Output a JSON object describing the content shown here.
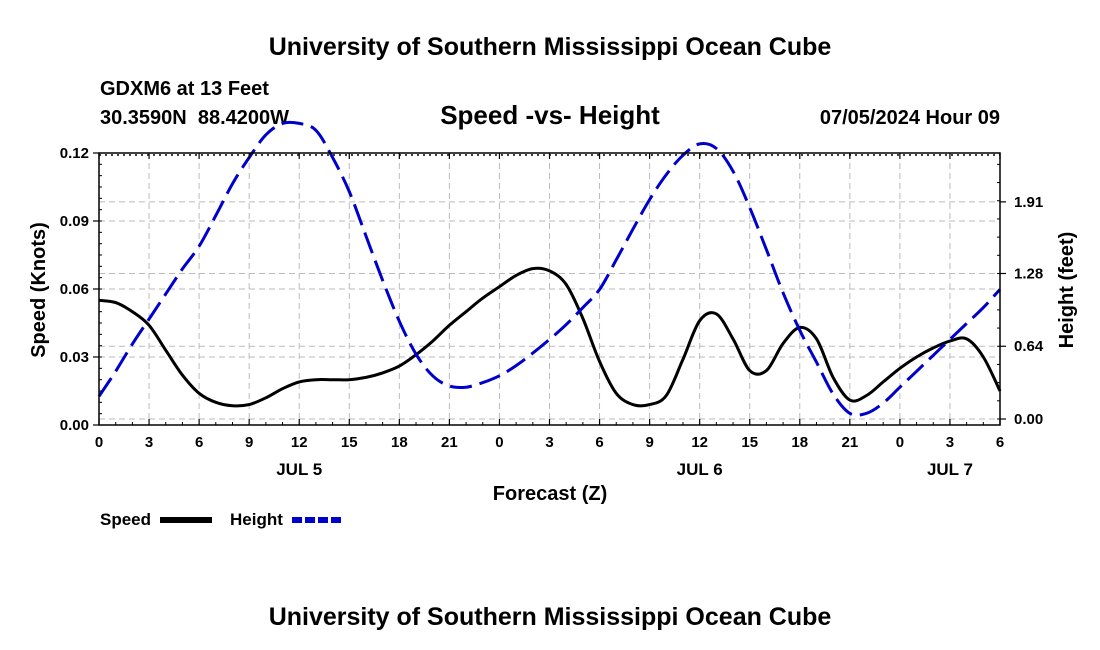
{
  "header": {
    "title": "University of Southern Mississippi Ocean Cube",
    "station": "GDXM6 at 13 Feet",
    "coords": "30.3590N  88.4200W",
    "subtitle": "Speed -vs- Height",
    "datetime": "07/05/2024 Hour 09"
  },
  "footer": {
    "title": "University of Southern Mississippi Ocean Cube"
  },
  "legend": {
    "speed_label": "Speed",
    "height_label": "Height"
  },
  "colors": {
    "speed": "#000000",
    "height": "#0000cc",
    "grid": "#bbbbbb"
  },
  "chart_data": {
    "type": "line",
    "title": "Speed -vs- Height",
    "xlabel": "Forecast (Z)",
    "ylabel_left": "Speed (Knots)",
    "ylabel_right": "Height (feet)",
    "x_hours_range": [
      0,
      54
    ],
    "x_ticks": [
      {
        "h": 0,
        "label": "0"
      },
      {
        "h": 3,
        "label": "3"
      },
      {
        "h": 6,
        "label": "6"
      },
      {
        "h": 9,
        "label": "9"
      },
      {
        "h": 12,
        "label": "12"
      },
      {
        "h": 15,
        "label": "15"
      },
      {
        "h": 18,
        "label": "18"
      },
      {
        "h": 21,
        "label": "21"
      },
      {
        "h": 24,
        "label": "0"
      },
      {
        "h": 27,
        "label": "3"
      },
      {
        "h": 30,
        "label": "6"
      },
      {
        "h": 33,
        "label": "9"
      },
      {
        "h": 36,
        "label": "12"
      },
      {
        "h": 39,
        "label": "15"
      },
      {
        "h": 42,
        "label": "18"
      },
      {
        "h": 45,
        "label": "21"
      },
      {
        "h": 48,
        "label": "0"
      },
      {
        "h": 51,
        "label": "3"
      },
      {
        "h": 54,
        "label": "6"
      }
    ],
    "day_labels": [
      {
        "h": 12,
        "label": "JUL 5"
      },
      {
        "h": 36,
        "label": "JUL 6"
      },
      {
        "h": 51,
        "label": "JUL 7"
      }
    ],
    "ylim_left": [
      0,
      0.12
    ],
    "y_ticks_left": [
      "0.00",
      "0.03",
      "0.06",
      "0.09",
      "0.12"
    ],
    "ylim_right": [
      0,
      2.34
    ],
    "y_ticks_right": [
      "0.00",
      "0.64",
      "1.28",
      "1.91"
    ],
    "series": [
      {
        "name": "Speed",
        "axis": "left",
        "style": "solid",
        "x": [
          0,
          1,
          2,
          3,
          4,
          5,
          6,
          7,
          8,
          9,
          10,
          11,
          12,
          13,
          14,
          15,
          16,
          17,
          18,
          19,
          20,
          21,
          22,
          23,
          24,
          25,
          26,
          27,
          28,
          29,
          30,
          31,
          32,
          33,
          34,
          35,
          36,
          37,
          38,
          39,
          40,
          41,
          42,
          43,
          44,
          45,
          46,
          47,
          48,
          49,
          50,
          51,
          52,
          53,
          54
        ],
        "values": [
          0.055,
          0.054,
          0.05,
          0.044,
          0.033,
          0.022,
          0.014,
          0.01,
          0.0085,
          0.009,
          0.012,
          0.016,
          0.019,
          0.02,
          0.02,
          0.02,
          0.021,
          0.023,
          0.026,
          0.031,
          0.037,
          0.044,
          0.05,
          0.056,
          0.061,
          0.066,
          0.069,
          0.068,
          0.062,
          0.047,
          0.028,
          0.014,
          0.009,
          0.009,
          0.013,
          0.029,
          0.046,
          0.049,
          0.038,
          0.024,
          0.024,
          0.036,
          0.043,
          0.038,
          0.021,
          0.011,
          0.013,
          0.019,
          0.025,
          0.03,
          0.034,
          0.037,
          0.038,
          0.03,
          0.015
        ]
      },
      {
        "name": "Height",
        "axis": "right",
        "style": "dashed",
        "x": [
          0,
          1,
          2,
          3,
          4,
          5,
          6,
          7,
          8,
          9,
          10,
          11,
          12,
          13,
          14,
          15,
          16,
          17,
          18,
          19,
          20,
          21,
          22,
          23,
          24,
          25,
          26,
          27,
          28,
          29,
          30,
          31,
          32,
          33,
          34,
          35,
          36,
          37,
          38,
          39,
          40,
          41,
          42,
          43,
          44,
          45,
          46,
          47,
          48,
          49,
          50,
          51,
          52,
          53,
          54
        ],
        "values": [
          0.2,
          0.42,
          0.66,
          0.88,
          1.1,
          1.32,
          1.52,
          1.79,
          2.07,
          2.3,
          2.5,
          2.6,
          2.6,
          2.54,
          2.3,
          2.0,
          1.61,
          1.22,
          0.86,
          0.57,
          0.38,
          0.29,
          0.28,
          0.32,
          0.38,
          0.47,
          0.58,
          0.7,
          0.83,
          0.98,
          1.14,
          1.4,
          1.67,
          1.93,
          2.15,
          2.32,
          2.42,
          2.38,
          2.18,
          1.86,
          1.49,
          1.11,
          0.78,
          0.5,
          0.22,
          0.05,
          0.05,
          0.14,
          0.28,
          0.42,
          0.56,
          0.7,
          0.84,
          0.98,
          1.14
        ]
      }
    ]
  }
}
